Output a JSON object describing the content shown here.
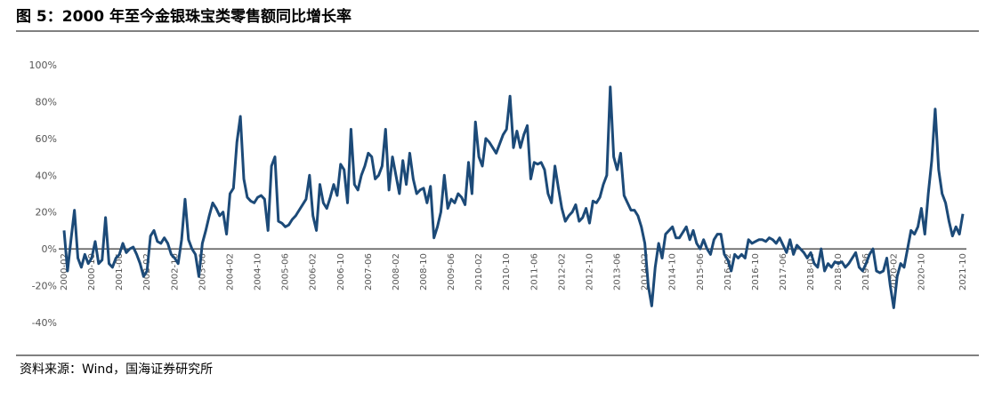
{
  "chart_data": {
    "type": "line",
    "title": "图 5：2000 年至今金银珠宝类零售额同比增长率",
    "source": "资料来源：Wind，国海证券研究所",
    "ylim": [
      -40,
      100
    ],
    "yticks": [
      {
        "value": -40,
        "label": "-40%"
      },
      {
        "value": -20,
        "label": "-20%"
      },
      {
        "value": 0,
        "label": "0%"
      },
      {
        "value": 20,
        "label": "20%"
      },
      {
        "value": 40,
        "label": "40%"
      },
      {
        "value": 60,
        "label": "60%"
      },
      {
        "value": 80,
        "label": "80%"
      },
      {
        "value": 100,
        "label": "100%"
      }
    ],
    "categories": [
      "2000-02",
      null,
      null,
      null,
      null,
      null,
      null,
      null,
      "2000-10",
      null,
      null,
      null,
      null,
      null,
      null,
      null,
      "2001-06",
      null,
      null,
      null,
      null,
      null,
      null,
      null,
      "2002-02",
      null,
      null,
      null,
      null,
      null,
      null,
      null,
      "2002-10",
      null,
      null,
      null,
      null,
      null,
      null,
      null,
      "2003-06",
      null,
      null,
      null,
      null,
      null,
      null,
      null,
      "2004-02",
      null,
      null,
      null,
      null,
      null,
      null,
      null,
      "2004-10",
      null,
      null,
      null,
      null,
      null,
      null,
      null,
      "2005-06",
      null,
      null,
      null,
      null,
      null,
      null,
      null,
      "2006-02",
      null,
      null,
      null,
      null,
      null,
      null,
      null,
      "2006-10",
      null,
      null,
      null,
      null,
      null,
      null,
      null,
      "2007-06",
      null,
      null,
      null,
      null,
      null,
      null,
      null,
      "2008-02",
      null,
      null,
      null,
      null,
      null,
      null,
      null,
      "2008-10",
      null,
      null,
      null,
      null,
      null,
      null,
      null,
      "2009-06",
      null,
      null,
      null,
      null,
      null,
      null,
      null,
      "2010-02",
      null,
      null,
      null,
      null,
      null,
      null,
      null,
      "2010-10",
      null,
      null,
      null,
      null,
      null,
      null,
      null,
      "2011-06",
      null,
      null,
      null,
      null,
      null,
      null,
      null,
      "2012-02",
      null,
      null,
      null,
      null,
      null,
      null,
      null,
      "2012-10",
      null,
      null,
      null,
      null,
      null,
      null,
      null,
      "2013-06",
      null,
      null,
      null,
      null,
      null,
      null,
      null,
      "2014-02",
      null,
      null,
      null,
      null,
      null,
      null,
      null,
      "2014-10",
      null,
      null,
      null,
      null,
      null,
      null,
      null,
      "2015-06",
      null,
      null,
      null,
      null,
      null,
      null,
      null,
      "2016-02",
      null,
      null,
      null,
      null,
      null,
      null,
      null,
      "2016-10",
      null,
      null,
      null,
      null,
      null,
      null,
      null,
      "2017-06",
      null,
      null,
      null,
      null,
      null,
      null,
      null,
      "2018-02",
      null,
      null,
      null,
      null,
      null,
      null,
      null,
      "2018-10",
      null,
      null,
      null,
      null,
      null,
      null,
      null,
      "2019-06",
      null,
      null,
      null,
      null,
      null,
      null,
      null,
      "2020-02",
      null,
      null,
      null,
      null,
      null,
      null,
      null,
      "2020-10",
      null,
      null,
      null,
      null,
      null,
      null,
      null,
      null,
      null,
      null,
      null,
      "2021-10"
    ],
    "series": [
      {
        "color": "#1c4a78",
        "values": [
          10,
          -12,
          5,
          21,
          -5,
          -10,
          -3,
          -8,
          -5,
          4,
          -8,
          -6,
          17,
          -8,
          -10,
          -5,
          -3,
          3,
          -2,
          0,
          1,
          -3,
          -8,
          -15,
          -12,
          7,
          10,
          4,
          3,
          6,
          3,
          -3,
          -5,
          -8,
          5,
          27,
          5,
          0,
          -3,
          -15,
          3,
          10,
          18,
          25,
          22,
          18,
          20,
          8,
          30,
          33,
          58,
          72,
          38,
          28,
          26,
          25,
          28,
          29,
          27,
          10,
          45,
          50,
          15,
          14,
          12,
          13,
          16,
          18,
          21,
          24,
          27,
          40,
          18,
          10,
          35,
          25,
          22,
          28,
          35,
          29,
          46,
          43,
          25,
          65,
          35,
          32,
          40,
          45,
          52,
          50,
          38,
          40,
          45,
          65,
          32,
          50,
          40,
          30,
          48,
          35,
          52,
          38,
          30,
          32,
          33,
          25,
          34,
          6,
          12,
          20,
          40,
          22,
          27,
          25,
          30,
          28,
          24,
          47,
          30,
          69,
          50,
          45,
          60,
          58,
          55,
          52,
          57,
          62,
          65,
          83,
          55,
          64,
          55,
          62,
          67,
          38,
          47,
          46,
          47,
          43,
          30,
          25,
          45,
          33,
          22,
          15,
          18,
          20,
          24,
          15,
          17,
          22,
          14,
          26,
          25,
          28,
          35,
          40,
          88,
          50,
          43,
          52,
          29,
          25,
          21,
          21,
          18,
          12,
          3,
          -20,
          -31,
          -10,
          3,
          -5,
          8,
          10,
          12,
          6,
          6,
          9,
          12,
          5,
          10,
          3,
          0,
          5,
          0,
          -3,
          5,
          8,
          8,
          -3,
          -6,
          -12,
          -3,
          -5,
          -3,
          -5,
          5,
          3,
          4,
          5,
          5,
          4,
          6,
          5,
          3,
          6,
          2,
          -2,
          5,
          -3,
          2,
          0,
          -2,
          -5,
          -2,
          -8,
          -10,
          0,
          -12,
          -8,
          -10,
          -7,
          -8,
          -7,
          -10,
          -8,
          -5,
          -2,
          -10,
          -12,
          -8,
          -3,
          0,
          -12,
          -13,
          -12,
          -5,
          -20,
          -32,
          -15,
          -8,
          -10,
          0,
          10,
          8,
          12,
          22,
          8,
          30,
          48,
          76,
          43,
          30,
          25,
          15,
          7,
          12,
          8,
          19
        ]
      }
    ]
  }
}
